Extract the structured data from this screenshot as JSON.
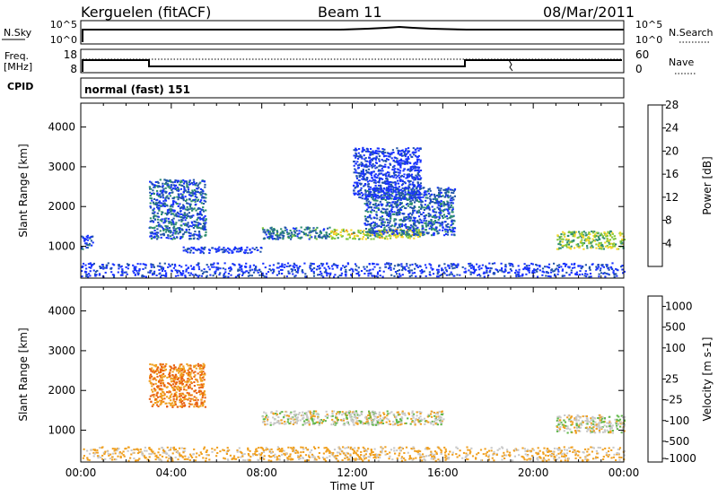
{
  "header": {
    "station": "Kerguelen (fitACF)",
    "beam": "Beam 11",
    "date": "08/Mar/2011"
  },
  "noise_panel": {
    "left_label": "N.Sky",
    "right_label": "N.Search",
    "left_ticks": [
      "10^5",
      "10^0"
    ],
    "right_ticks": [
      "10^5",
      "10^0"
    ]
  },
  "freq_panel": {
    "left_label_1": "Freq.",
    "left_label_2": "[MHz]",
    "left_ticks": [
      "18",
      "8"
    ],
    "right_label": "Nave",
    "right_ticks": [
      "60",
      "0"
    ]
  },
  "cpid": {
    "label": "CPID",
    "value": "normal (fast) 151"
  },
  "chart_data": [
    {
      "type": "heatmap",
      "title": "",
      "xlabel": "",
      "ylabel": "Slant Range [km]",
      "xlim": [
        "00:00",
        "24:00"
      ],
      "ylim": [
        200,
        4600
      ],
      "y_ticks": [
        "1000",
        "2000",
        "3000",
        "4000"
      ],
      "colorbar": {
        "label": "Power [dB]",
        "ticks": [
          "4",
          "8",
          "12",
          "16",
          "20",
          "24",
          "28"
        ],
        "colors": [
          "#1832ff",
          "#2255a8",
          "#2e8e6e",
          "#7ec63c",
          "#f2d52a",
          "#f08a10",
          "#f22410"
        ]
      },
      "features": [
        {
          "start": "00:00",
          "end": "24:00",
          "range_km": [
            250,
            600
          ],
          "power_db": 6
        },
        {
          "start": "00:00",
          "end": "00:30",
          "range_km": [
            950,
            1300
          ],
          "power_db": 8
        },
        {
          "start": "03:00",
          "end": "05:30",
          "range_km": [
            1200,
            2700
          ],
          "power_db": 10
        },
        {
          "start": "04:30",
          "end": "08:00",
          "range_km": [
            850,
            1000
          ],
          "power_db": 6
        },
        {
          "start": "08:00",
          "end": "11:00",
          "range_km": [
            1200,
            1500
          ],
          "power_db": 12
        },
        {
          "start": "11:00",
          "end": "15:00",
          "range_km": [
            1200,
            1450
          ],
          "power_db": 20
        },
        {
          "start": "12:30",
          "end": "16:30",
          "range_km": [
            1300,
            2500
          ],
          "power_db": 10
        },
        {
          "start": "12:00",
          "end": "15:00",
          "range_km": [
            2200,
            3500
          ],
          "power_db": 6
        },
        {
          "start": "21:00",
          "end": "24:00",
          "range_km": [
            950,
            1400
          ],
          "power_db": 18
        }
      ]
    },
    {
      "type": "heatmap",
      "title": "",
      "xlabel": "Time UT",
      "ylabel": "Slant Range [km]",
      "xlim": [
        "00:00",
        "24:00"
      ],
      "ylim": [
        200,
        4600
      ],
      "x_ticks": [
        "00:00",
        "04:00",
        "08:00",
        "12:00",
        "16:00",
        "20:00",
        "00:00"
      ],
      "y_ticks": [
        "1000",
        "2000",
        "3000",
        "4000"
      ],
      "colorbar": {
        "label": "Velocity [m s-1]",
        "ticks": [
          "1000",
          "500",
          "100",
          "25",
          "-25",
          "-100",
          "-500",
          "-1000"
        ],
        "colors": [
          "#1f3aa0",
          "#2e7a60",
          "#5fb848",
          "#c8c8c8",
          "#c8c8c8",
          "#f0a020",
          "#e86010",
          "#e81810"
        ]
      },
      "features": [
        {
          "start": "00:00",
          "end": "24:00",
          "range_km": [
            250,
            600
          ],
          "velocity_ms": -100
        },
        {
          "start": "03:00",
          "end": "05:30",
          "range_km": [
            1600,
            2700
          ],
          "velocity_ms": -300
        },
        {
          "start": "08:00",
          "end": "16:00",
          "range_km": [
            1150,
            1500
          ],
          "velocity_ms": 0
        },
        {
          "start": "21:00",
          "end": "24:00",
          "range_km": [
            950,
            1400
          ],
          "velocity_ms": 0
        }
      ]
    }
  ]
}
